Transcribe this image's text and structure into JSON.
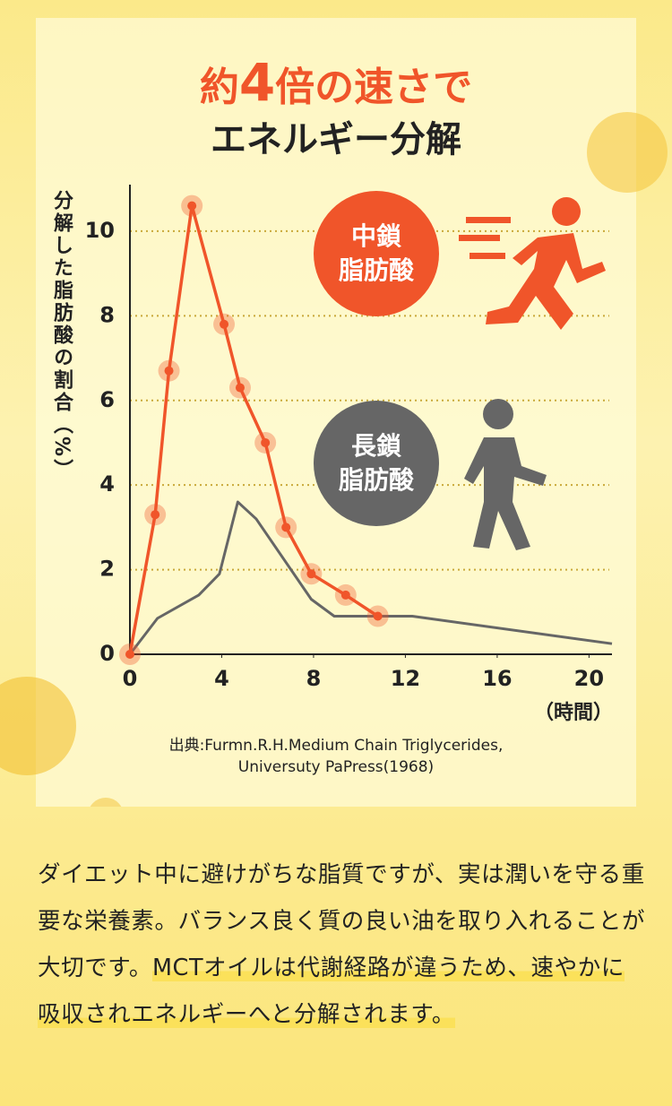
{
  "chart_data": {
    "type": "line",
    "title_parts": {
      "prefix": "約",
      "number": "4",
      "suffix": "倍の速さで"
    },
    "subtitle": "エネルギー分解",
    "y_label": "分解した脂肪酸の割合（%）",
    "x_label": "（時間）",
    "source": [
      "出典:Furmn.R.H.Medium Chain Triglycerides,",
      "Universuty PaPress(1968)"
    ],
    "xlim": [
      0,
      21
    ],
    "ylim": [
      0,
      11.1
    ],
    "xticks": [
      0,
      4,
      8,
      12,
      16,
      20
    ],
    "yticks": [
      0,
      2,
      4,
      6,
      8,
      10
    ],
    "grid": true,
    "series": [
      {
        "name": "中鎖\n脂肪酸",
        "color": "#f0552a",
        "x": [
          0,
          1.1,
          1.7,
          2.7,
          4.1,
          4.8,
          5.9,
          6.8,
          7.9,
          9.4,
          10.8
        ],
        "values": [
          0,
          3.3,
          6.7,
          10.6,
          7.8,
          6.3,
          5.0,
          3.0,
          1.9,
          1.4,
          0.9
        ]
      },
      {
        "name": "長鎖\n脂肪酸",
        "color": "#666666",
        "x": [
          0,
          1.2,
          3.0,
          3.9,
          4.7,
          5.5,
          7.9,
          8.9,
          10.8,
          12.3,
          21
        ],
        "values": [
          0,
          0.85,
          1.4,
          1.9,
          3.6,
          3.2,
          1.3,
          0.9,
          0.9,
          0.9,
          0.25
        ]
      }
    ]
  },
  "body": {
    "text": "ダイエット中に避けがちな脂質ですが、実は潤いを守る重要な栄養素。バランス良く質の良い油を取り入れることが大切です。",
    "highlight": "MCTオイルは代謝経路が違うため、速やかに吸収されエネルギーへと分解されます。"
  }
}
